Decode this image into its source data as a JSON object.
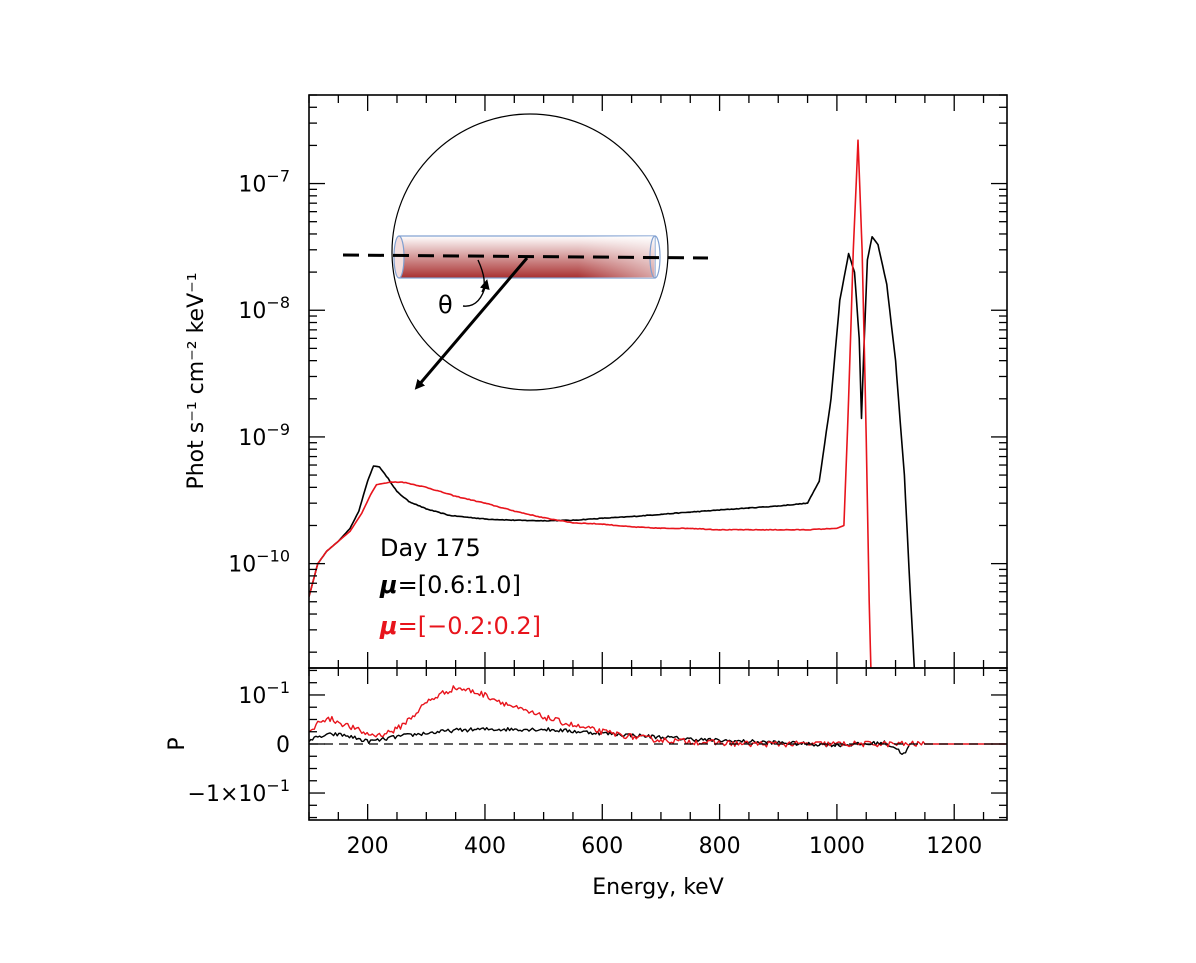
{
  "chart_data": {
    "type": "line",
    "xlabel": "Energy, keV",
    "xlim": [
      100,
      1290
    ],
    "xticks": [
      200,
      400,
      600,
      800,
      1000,
      1200
    ],
    "top_panel": {
      "ylabel": "Phot s⁻¹ cm⁻² keV⁻¹",
      "yscale": "log",
      "ylim": [
        1.5e-11,
        5e-07
      ],
      "ytick_labels": [
        {
          "value": 1e-07,
          "base": "10",
          "exp": "−7"
        },
        {
          "value": 1e-08,
          "base": "10",
          "exp": "−8"
        },
        {
          "value": 1e-09,
          "base": "10",
          "exp": "−9"
        },
        {
          "value": 1e-10,
          "base": "10",
          "exp": "−10"
        }
      ],
      "series": [
        {
          "name": "μ=[0.6:1.0]",
          "color": "#000000",
          "points": [
            [
              100,
              5.5e-11
            ],
            [
              115,
              1e-10
            ],
            [
              130,
              1.25e-10
            ],
            [
              150,
              1.5e-10
            ],
            [
              170,
              1.9e-10
            ],
            [
              185,
              2.6e-10
            ],
            [
              200,
              4.5e-10
            ],
            [
              210,
              5.9e-10
            ],
            [
              220,
              5.8e-10
            ],
            [
              235,
              4.7e-10
            ],
            [
              250,
              3.7e-10
            ],
            [
              270,
              3.1e-10
            ],
            [
              300,
              2.7e-10
            ],
            [
              340,
              2.4e-10
            ],
            [
              400,
              2.25e-10
            ],
            [
              450,
              2.2e-10
            ],
            [
              500,
              2.18e-10
            ],
            [
              550,
              2.2e-10
            ],
            [
              600,
              2.28e-10
            ],
            [
              650,
              2.35e-10
            ],
            [
              700,
              2.45e-10
            ],
            [
              750,
              2.55e-10
            ],
            [
              800,
              2.65e-10
            ],
            [
              850,
              2.75e-10
            ],
            [
              900,
              2.85e-10
            ],
            [
              950,
              3e-10
            ],
            [
              970,
              4.5e-10
            ],
            [
              990,
              2e-09
            ],
            [
              1005,
              1.2e-08
            ],
            [
              1020,
              2.8e-08
            ],
            [
              1030,
              2e-08
            ],
            [
              1038,
              6e-09
            ],
            [
              1042,
              1.4e-09
            ],
            [
              1046,
              5e-09
            ],
            [
              1052,
              2.5e-08
            ],
            [
              1060,
              3.8e-08
            ],
            [
              1070,
              3.3e-08
            ],
            [
              1085,
              1.6e-08
            ],
            [
              1100,
              4e-09
            ],
            [
              1115,
              5e-10
            ],
            [
              1125,
              6e-11
            ],
            [
              1132,
              1.5e-11
            ]
          ]
        },
        {
          "name": "μ=[−0.2:0.2]",
          "color": "#e8141c",
          "points": [
            [
              100,
              5.5e-11
            ],
            [
              115,
              1e-10
            ],
            [
              130,
              1.25e-10
            ],
            [
              150,
              1.5e-10
            ],
            [
              170,
              1.8e-10
            ],
            [
              190,
              2.5e-10
            ],
            [
              205,
              3.5e-10
            ],
            [
              215,
              4.2e-10
            ],
            [
              240,
              4.4e-10
            ],
            [
              260,
              4.4e-10
            ],
            [
              300,
              4e-10
            ],
            [
              350,
              3.4e-10
            ],
            [
              400,
              3e-10
            ],
            [
              450,
              2.6e-10
            ],
            [
              500,
              2.3e-10
            ],
            [
              550,
              2.1e-10
            ],
            [
              600,
              2.05e-10
            ],
            [
              650,
              1.95e-10
            ],
            [
              700,
              1.9e-10
            ],
            [
              750,
              1.9e-10
            ],
            [
              800,
              1.85e-10
            ],
            [
              850,
              1.85e-10
            ],
            [
              900,
              1.85e-10
            ],
            [
              950,
              1.85e-10
            ],
            [
              1000,
              1.9e-10
            ],
            [
              1012,
              2e-10
            ],
            [
              1020,
              2e-09
            ],
            [
              1028,
              3e-08
            ],
            [
              1036,
              2.2e-07
            ],
            [
              1043,
              3e-08
            ],
            [
              1050,
              1e-09
            ],
            [
              1055,
              5e-11
            ],
            [
              1058,
              1.5e-11
            ]
          ]
        }
      ],
      "legend": {
        "title": "Day 175",
        "entries": [
          {
            "symbol": "μ",
            "range": "=[0.6:1.0]",
            "color": "#000000"
          },
          {
            "symbol": "μ",
            "range": "=[−0.2:0.2]",
            "color": "#e8141c"
          }
        ]
      },
      "inset": {
        "angle_label": "θ"
      }
    },
    "bottom_panel": {
      "ylabel": "P",
      "yscale": "linear",
      "ylim": [
        -0.155,
        0.155
      ],
      "ytick_labels": [
        {
          "value": 0.1,
          "base": "10",
          "exp": "−1"
        },
        {
          "value": 0,
          "text": "0"
        },
        {
          "value": -0.1,
          "text": "−1×10",
          "exp": "−1"
        }
      ],
      "reference_line": 0,
      "series": [
        {
          "name": "μ=[0.6:1.0]",
          "color": "#000000",
          "points": [
            [
              100,
              0.008
            ],
            [
              120,
              0.015
            ],
            [
              140,
              0.02
            ],
            [
              160,
              0.018
            ],
            [
              180,
              0.012
            ],
            [
              200,
              0.005
            ],
            [
              220,
              0.008
            ],
            [
              250,
              0.015
            ],
            [
              300,
              0.022
            ],
            [
              350,
              0.028
            ],
            [
              400,
              0.03
            ],
            [
              450,
              0.03
            ],
            [
              500,
              0.03
            ],
            [
              550,
              0.026
            ],
            [
              600,
              0.022
            ],
            [
              650,
              0.018
            ],
            [
              700,
              0.014
            ],
            [
              750,
              0.01
            ],
            [
              800,
              0.007
            ],
            [
              850,
              0.005
            ],
            [
              900,
              0.003
            ],
            [
              950,
              0.0
            ],
            [
              1000,
              -0.002
            ],
            [
              1050,
              0.0
            ],
            [
              1080,
              0.003
            ],
            [
              1100,
              -0.008
            ],
            [
              1115,
              -0.022
            ],
            [
              1125,
              0.0
            ]
          ]
        },
        {
          "name": "μ=[−0.2:0.2]",
          "color": "#e8141c",
          "points": [
            [
              100,
              0.02
            ],
            [
              120,
              0.05
            ],
            [
              140,
              0.05
            ],
            [
              160,
              0.04
            ],
            [
              180,
              0.03
            ],
            [
              200,
              0.02
            ],
            [
              220,
              0.018
            ],
            [
              250,
              0.03
            ],
            [
              280,
              0.06
            ],
            [
              300,
              0.085
            ],
            [
              330,
              0.105
            ],
            [
              350,
              0.115
            ],
            [
              370,
              0.11
            ],
            [
              400,
              0.1
            ],
            [
              430,
              0.085
            ],
            [
              460,
              0.07
            ],
            [
              500,
              0.055
            ],
            [
              530,
              0.045
            ],
            [
              560,
              0.035
            ],
            [
              600,
              0.025
            ],
            [
              650,
              0.015
            ],
            [
              700,
              0.008
            ],
            [
              750,
              0.005
            ],
            [
              800,
              0.002
            ],
            [
              850,
              0.0
            ],
            [
              900,
              0.0
            ],
            [
              950,
              0.0
            ],
            [
              1000,
              0.0
            ],
            [
              1050,
              0.0
            ],
            [
              1100,
              0.0
            ],
            [
              1150,
              0.0
            ],
            [
              1200,
              0.0
            ],
            [
              1290,
              0.0
            ]
          ]
        }
      ]
    }
  }
}
